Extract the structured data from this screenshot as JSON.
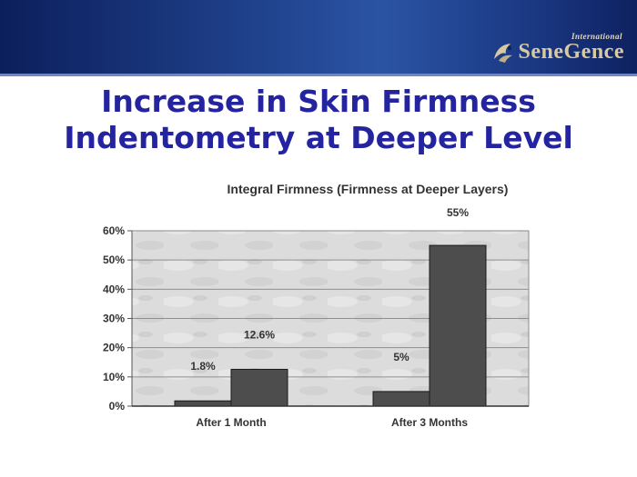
{
  "slide": {
    "title_line1": "Increase in Skin Firmness",
    "title_line2": "Indentometry at Deeper Level"
  },
  "logo": {
    "name": "SeneGence",
    "tag": "International",
    "text_color": "#d8c9a0"
  },
  "colors": {
    "header": "#1d3d86",
    "title": "#2424a0",
    "plot_bg": "#d9d9d9",
    "bar": "#4d4d4d"
  },
  "chart_data": {
    "type": "bar",
    "title": "Integral Firmness (Firmness at Deeper Layers)",
    "categories": [
      "After 1 Month",
      "After 3 Months"
    ],
    "series": [
      {
        "values": [
          1.8,
          5
        ]
      },
      {
        "values": [
          12.6,
          55
        ]
      }
    ],
    "data_labels": [
      [
        "1.8%",
        "5%"
      ],
      [
        "12.6%",
        "55%"
      ]
    ],
    "y_ticks": [
      0,
      10,
      20,
      30,
      40,
      50,
      60
    ],
    "y_tick_labels": [
      "0%",
      "10%",
      "20%",
      "30%",
      "40%",
      "50%",
      "60%"
    ],
    "ylim": [
      0,
      60
    ],
    "grid": true,
    "legend": "none"
  }
}
